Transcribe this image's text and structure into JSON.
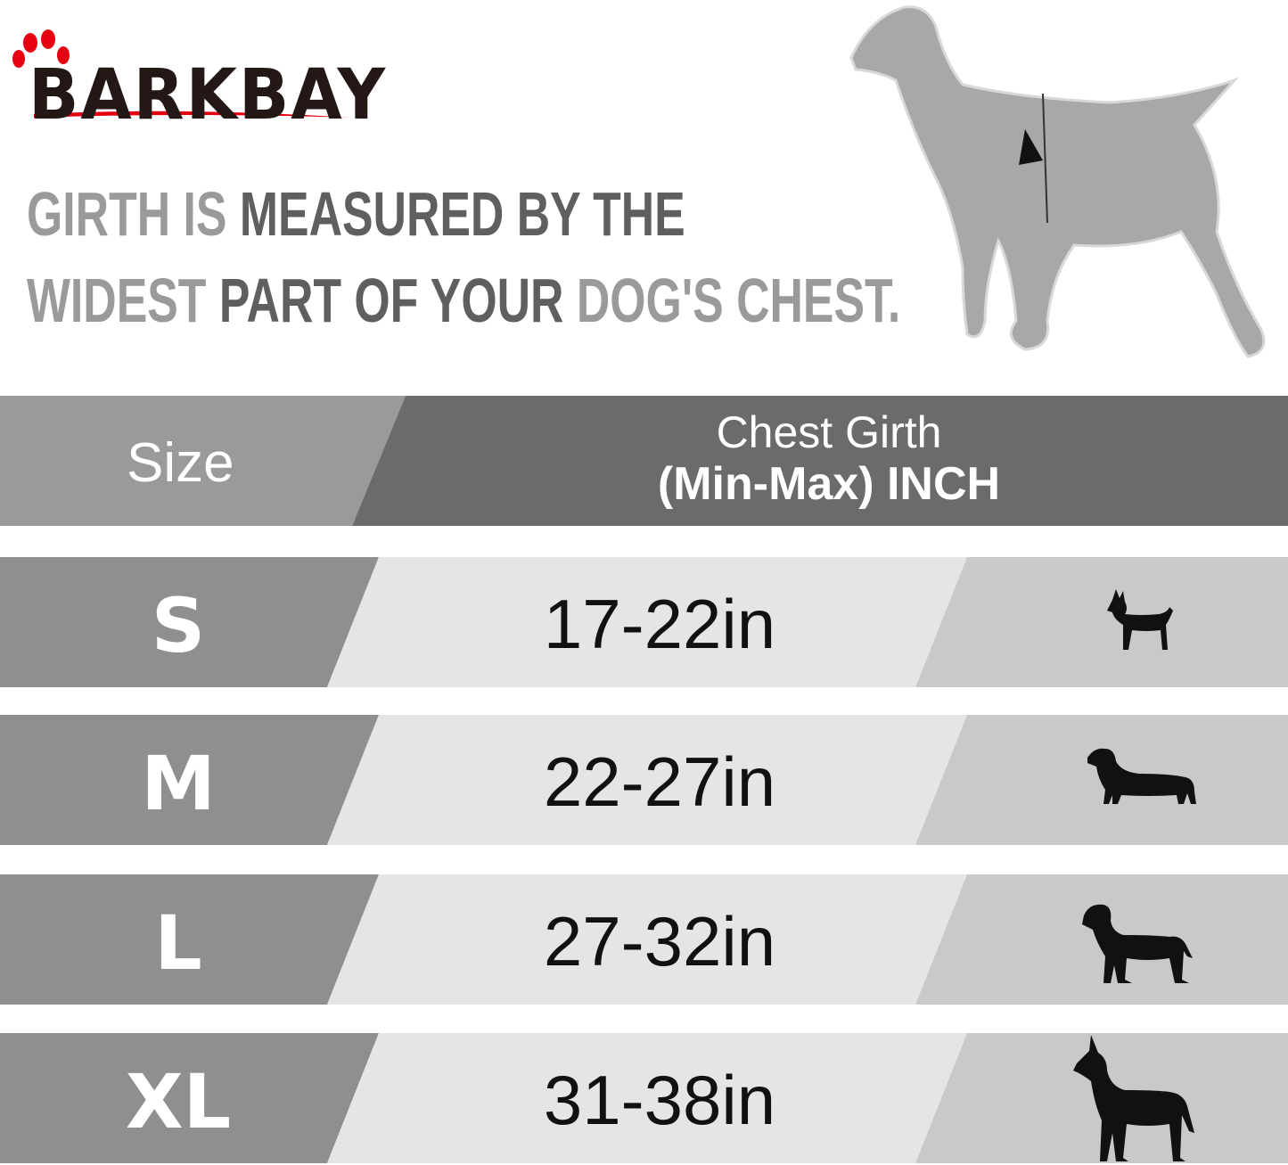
{
  "brand": {
    "logo_text": "BARKBAY",
    "accent_color": "#e60012"
  },
  "headline": {
    "line1": [
      {
        "text": "GIRTH IS",
        "tone": "light"
      },
      {
        "text": "MEASURED BY THE",
        "tone": "dark"
      }
    ],
    "line2": [
      {
        "text": "WIDEST",
        "tone": "light"
      },
      {
        "text": "PART OF YOUR",
        "tone": "dark"
      },
      {
        "text": "DOG'S CHEST.",
        "tone": "light"
      }
    ]
  },
  "illustration": {
    "icon": "measured-dog-chest-icon"
  },
  "table": {
    "header": {
      "size": "Size",
      "girth_line1": "Chest Girth",
      "girth_line2": "(Min-Max)  INCH"
    },
    "rows": [
      {
        "size": "S",
        "range": "17-22in",
        "icon": "chihuahua-icon"
      },
      {
        "size": "M",
        "range": "22-27in",
        "icon": "dachshund-icon"
      },
      {
        "size": "L",
        "range": "27-32in",
        "icon": "labrador-icon"
      },
      {
        "size": "XL",
        "range": "31-38in",
        "icon": "great-dane-icon"
      }
    ],
    "colors": {
      "header_left": "#9a9a9a",
      "header_right": "#6b6b6b",
      "row_left": "#8f8f8f",
      "row_mid": "#e5e5e5",
      "row_right": "#c9c9c9"
    }
  }
}
